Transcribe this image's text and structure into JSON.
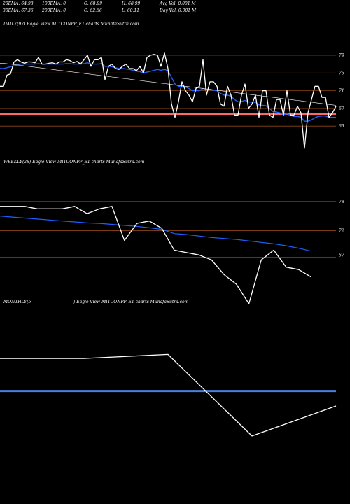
{
  "header": {
    "ema20": "20EMA: 64.98",
    "ema100": "100EMA: 0",
    "open": "O: 68.99",
    "high": "H: 68.99",
    "avg_vol": "Avg Vol: 0.001 M",
    "ema30": "30EMA: 67.36",
    "ema200": "200EMA: 0",
    "close": "C: 62.66",
    "low": "L: 60.11",
    "day_vol": "Day Vol: 0.001 M"
  },
  "panels": {
    "daily": "DAILY(97) Eagle  View  MITCONPP_E1 charts MunafaSutra.com",
    "weekly": "WEEKLY(28) Eagle  View  MITCONPP_E1 charts MunafaSutra.com",
    "monthly_a": "MONTHLY(5",
    "monthly_b": ") Eagle  View  MITCONPP_E1 charts MunafaSutra.com"
  },
  "colors": {
    "price": "#ffffff",
    "ema_blue": "#1f5fff",
    "grid": "#8b4513",
    "level_red": "#ff6666",
    "monthly_level": "#4a80e0"
  },
  "chart_data": [
    {
      "type": "line",
      "title": "DAILY(97)",
      "ylim": [
        57.5,
        82
      ],
      "yticks": [
        79,
        75,
        71,
        67,
        63
      ],
      "level": 65.8,
      "x": [
        0,
        1,
        2,
        3,
        4,
        5,
        6,
        7,
        8,
        9,
        10,
        11,
        12,
        13,
        14,
        15,
        16,
        17,
        18,
        19,
        20,
        21,
        22,
        23,
        24,
        25,
        26,
        27,
        28,
        29,
        30,
        31,
        32,
        33,
        34,
        35,
        36,
        37,
        38,
        39,
        40,
        41,
        42,
        43,
        44,
        45,
        46,
        47,
        48,
        49,
        50,
        51,
        52,
        53,
        54,
        55,
        56,
        57,
        58,
        59,
        60,
        61,
        62,
        63,
        64,
        65,
        66,
        67,
        68,
        69,
        70,
        71,
        72,
        73,
        74,
        75,
        76,
        77,
        78,
        79,
        80,
        81,
        82,
        83,
        84,
        85,
        86,
        87,
        88,
        89,
        90,
        91,
        92,
        93,
        94,
        95,
        96
      ],
      "series": [
        {
          "values": [
            72,
            72,
            74.5,
            74.8,
            77.5,
            78,
            77.5,
            77.2,
            77.5,
            77.5,
            77.3,
            78.5,
            77,
            77,
            77.2,
            77.3,
            77,
            77.5,
            77.5,
            78,
            77.8,
            77.3,
            77.6,
            77,
            78,
            79,
            76.5,
            78,
            78,
            78.5,
            73.5,
            76.5,
            77,
            76,
            75.8,
            76.5,
            77,
            76,
            76,
            75.5,
            76.5,
            75,
            78.5,
            79,
            79.2,
            79,
            76.5,
            79.5,
            76,
            68,
            65,
            68.5,
            73,
            71,
            70,
            68.5,
            71.5,
            72,
            78,
            70,
            73,
            73,
            72,
            68,
            67.5,
            72,
            70,
            65.5,
            65.5,
            70,
            72.5,
            67,
            68,
            70,
            65,
            71,
            71,
            65.5,
            65,
            69,
            69,
            65.5,
            71,
            65.5,
            65.5,
            67.5,
            66,
            58,
            66,
            69,
            72,
            72,
            69.5,
            69.5,
            65,
            66,
            67.5
          ]
        },
        {
          "values": [
            77.2,
            77.2,
            77.1,
            77.0,
            76.9,
            76.8,
            76.7,
            76.6,
            76.5,
            76.4,
            76.3,
            76.2,
            76.1,
            76.0,
            75.9,
            75.8,
            75.7,
            75.6,
            75.5,
            75.4,
            75.3,
            75.2,
            75.1,
            75.0,
            74.9,
            74.8,
            74.7,
            74.6,
            74.5,
            74.4,
            74.3,
            74.2,
            74.1,
            74.0,
            73.9,
            73.8,
            73.7,
            73.6,
            73.5,
            73.4,
            73.3,
            73.2,
            73.1,
            73.0,
            72.9,
            72.8,
            72.7,
            72.6,
            72.5,
            72.4,
            72.3,
            72.2,
            72.1,
            72.0,
            71.9,
            71.8,
            71.7,
            71.6,
            71.5,
            71.4,
            71.3,
            71.2,
            71.1,
            71.0,
            70.9,
            70.8,
            70.7,
            70.6,
            70.5,
            70.4,
            70.3,
            70.2,
            70.1,
            70.0,
            69.9,
            69.8,
            69.7,
            69.6,
            69.5,
            69.4,
            69.3,
            69.2,
            69.1,
            69.0,
            68.9,
            68.8,
            68.7,
            68.6,
            68.5,
            68.4,
            68.3,
            68.2,
            68.1,
            68.0,
            67.9,
            67.8,
            67.7
          ]
        },
        {
          "values": [
            76,
            76,
            76.2,
            76.4,
            76.6,
            76.8,
            77,
            77,
            77,
            77,
            77,
            77.1,
            77,
            77,
            77,
            77,
            77,
            77,
            77,
            77.1,
            77.1,
            77,
            77,
            77,
            77.1,
            77.3,
            77,
            77,
            77,
            77.1,
            76.5,
            76.5,
            76.4,
            76.2,
            76,
            76,
            75.9,
            75.8,
            75.6,
            75.4,
            75.3,
            75,
            75.2,
            75.4,
            75.6,
            75.8,
            75.6,
            75.8,
            75.5,
            74,
            72.5,
            72,
            72,
            71.8,
            71.5,
            71,
            71,
            71,
            71.5,
            71.2,
            71.2,
            71.1,
            71,
            70.4,
            70,
            70,
            69.8,
            69,
            68.5,
            68.6,
            68.8,
            68.5,
            68.4,
            68.4,
            67.8,
            67.7,
            67.6,
            67,
            66.3,
            66.2,
            66,
            65.6,
            65.8,
            65.4,
            65.2,
            65.2,
            65,
            64.1,
            64.1,
            64.4,
            64.9,
            65.2,
            65.3,
            65.3,
            65,
            65,
            65
          ]
        }
      ]
    },
    {
      "type": "line",
      "title": "WEEKLY(28)",
      "ylim": [
        59,
        82
      ],
      "yticks": [
        78,
        72,
        67
      ],
      "level": 66.5,
      "x": [
        0,
        1,
        2,
        3,
        4,
        5,
        6,
        7,
        8,
        9,
        10,
        11,
        12,
        13,
        14,
        15,
        16,
        17,
        18,
        19,
        20,
        21,
        22,
        23,
        24,
        25,
        26,
        27
      ],
      "series": [
        {
          "values": [
            77,
            77,
            77,
            76.5,
            76.5,
            76.5,
            77,
            75.5,
            76.5,
            77,
            70,
            73.5,
            74,
            72.5,
            68,
            67.5,
            67,
            66,
            63,
            61,
            57,
            66,
            68,
            64.5,
            64,
            62.5,
            null,
            null
          ]
        },
        {
          "values": [
            75,
            74.8,
            74.6,
            74.4,
            74.2,
            74,
            73.8,
            73.6,
            73.5,
            73.3,
            73.1,
            72.9,
            72.6,
            72.3,
            71.4,
            71.2,
            70.9,
            70.6,
            70.4,
            70.2,
            69.9,
            69.6,
            69.3,
            68.9,
            68.4,
            67.8,
            null,
            null
          ]
        }
      ]
    },
    {
      "type": "line",
      "title": "MONTHLY(5)",
      "ylim": [
        50,
        85
      ],
      "yticks": [],
      "level": 70.5,
      "x": [
        0,
        1,
        2,
        3,
        4
      ],
      "series": [
        {
          "values": [
            77,
            77,
            77.8,
            61.5,
            67.5
          ]
        }
      ]
    }
  ]
}
